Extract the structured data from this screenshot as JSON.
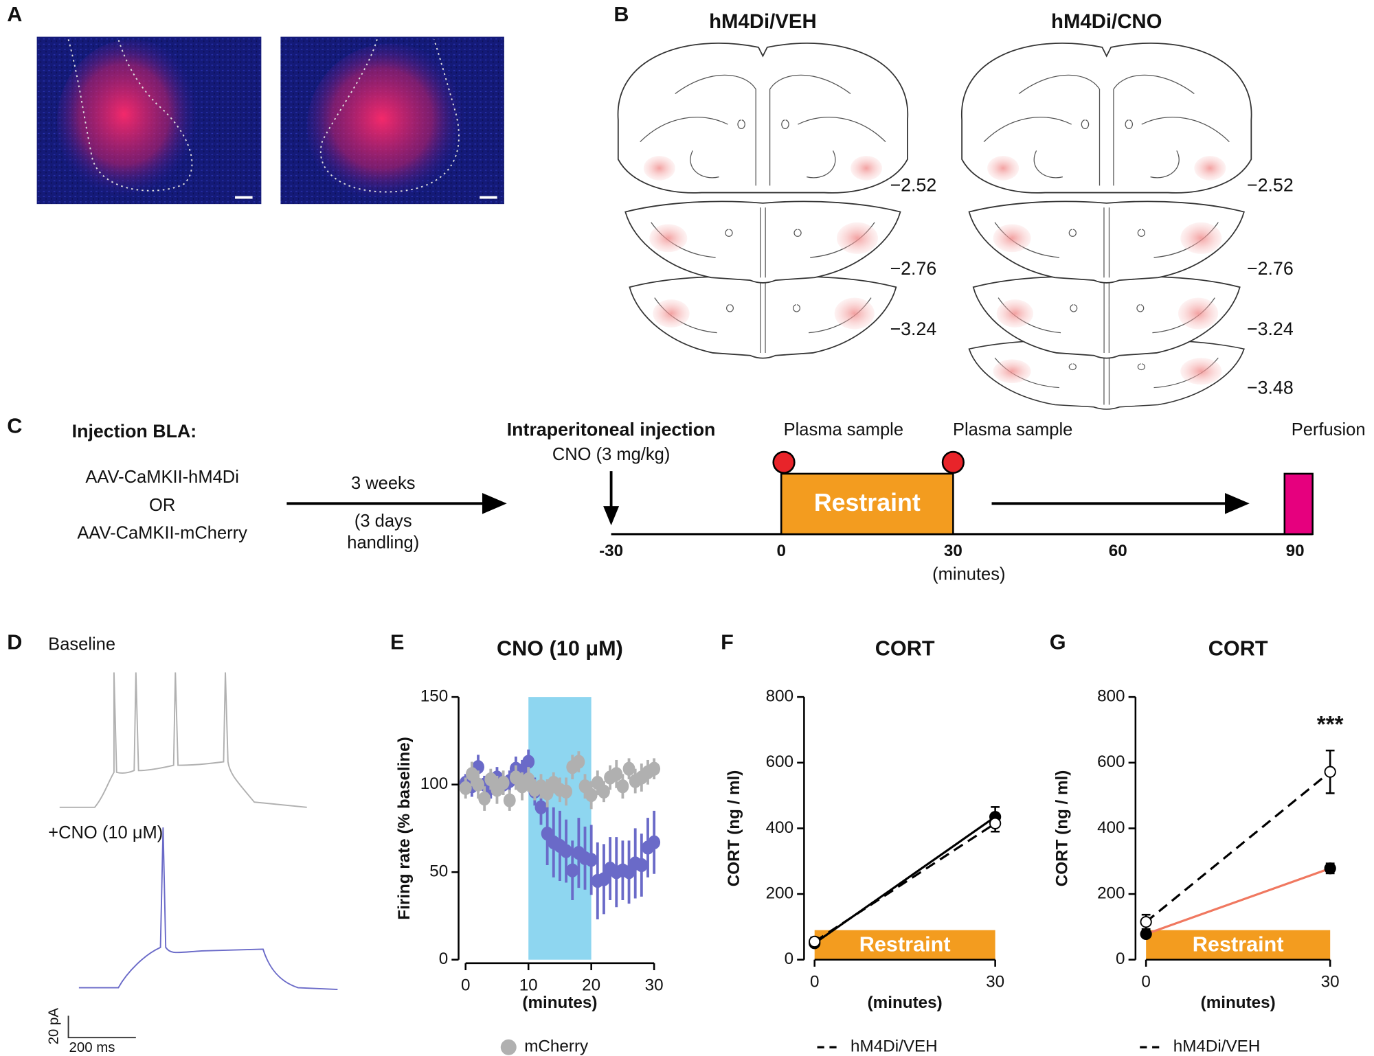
{
  "panel_labels": [
    "A",
    "B",
    "C",
    "D",
    "E",
    "F",
    "G"
  ],
  "panel_b": {
    "titles": [
      "hM4Di/VEH",
      "hM4Di/CNO"
    ],
    "levels_left": [
      "−2.52",
      "−2.76",
      "−3.24"
    ],
    "levels_right": [
      "−2.52",
      "−2.76",
      "−3.24",
      "−3.48"
    ]
  },
  "panel_c": {
    "injection_title": "Injection BLA:",
    "vectors": [
      "AAV-CaMKII-hM4Di",
      "OR",
      "AAV-CaMKII-mCherry"
    ],
    "interval": [
      "3 weeks",
      "(3 days",
      "handling)"
    ],
    "ip_title": "Intraperitoneal injection",
    "ip_dose": "CNO (3 mg/kg)",
    "plasma": [
      "Plasma sample",
      "Plasma sample"
    ],
    "perfusion": "Perfusion",
    "restraint": "Restraint",
    "timeline_ticks": [
      -30,
      0,
      30,
      60,
      90
    ],
    "unit": "(minutes)"
  },
  "panel_d": {
    "baseline": "Baseline",
    "cno": "+CNO (10 μM)",
    "scale_y": "20 pA",
    "scale_x": "200 ms"
  },
  "chart_data": [
    {
      "type": "scatter",
      "title": "CNO (10 μM)",
      "ylabel": "Firing rate (% baseline)",
      "xlabel": "(minutes)",
      "xlim": [
        0,
        30
      ],
      "xticks": [
        0,
        10,
        20,
        30
      ],
      "ylim": [
        0,
        150
      ],
      "yticks": [
        0,
        50,
        100,
        150
      ],
      "lines": false,
      "shade": {
        "x": [
          10,
          20
        ],
        "color": "#8ed6f0"
      },
      "x": [
        0,
        1,
        2,
        3,
        4,
        5,
        6,
        7,
        8,
        9,
        10,
        11,
        12,
        13,
        14,
        15,
        16,
        17,
        18,
        19,
        20,
        21,
        22,
        23,
        24,
        25,
        26,
        27,
        28,
        29,
        30
      ],
      "series": [
        {
          "name": "mCherry",
          "color": "#b0b0b0",
          "values": [
            98,
            106,
            100,
            92,
            103,
            97,
            101,
            91,
            104,
            99,
            103,
            97,
            99,
            95,
            101,
            97,
            96,
            110,
            113,
            99,
            94,
            101,
            96,
            104,
            106,
            99,
            109,
            102,
            104,
            107,
            109
          ],
          "errors": [
            6,
            7,
            8,
            7,
            6,
            8,
            7,
            6,
            7,
            8,
            7,
            6,
            7,
            8,
            6,
            7,
            8,
            7,
            6,
            7,
            8,
            7,
            6,
            7,
            8,
            7,
            6,
            7,
            8,
            7,
            6
          ]
        },
        {
          "color": "#6a6ac8",
          "values": [
            101,
            99,
            110,
            100,
            98,
            104,
            100,
            102,
            109,
            108,
            113,
            96,
            87,
            72,
            67,
            65,
            62,
            51,
            61,
            58,
            57,
            45,
            46,
            52,
            50,
            51,
            50,
            55,
            54,
            64,
            67
          ],
          "errors": [
            5,
            6,
            7,
            5,
            6,
            6,
            5,
            6,
            7,
            6,
            7,
            8,
            10,
            18,
            20,
            20,
            18,
            17,
            20,
            18,
            20,
            22,
            20,
            18,
            20,
            17,
            18,
            20,
            18,
            17,
            18
          ]
        }
      ]
    },
    {
      "type": "line",
      "title": "CORT",
      "ylabel": "CORT (ng / ml)",
      "xlabel": "(minutes)",
      "xlim": [
        0,
        30
      ],
      "xticks": [
        0,
        30
      ],
      "ylim": [
        0,
        800
      ],
      "yticks": [
        0,
        200,
        400,
        600,
        800
      ],
      "lines": true,
      "band": {
        "label": "Restraint",
        "x": [
          0,
          30
        ],
        "y": [
          0,
          90
        ],
        "color": "#f39c1f"
      },
      "x": [
        0,
        30
      ],
      "series": [
        {
          "name": "hM4Di/VEH",
          "color": "#000000",
          "marker_fill": "#ffffff",
          "dashed": true,
          "values": [
            55,
            415
          ],
          "errors": [
            12,
            25
          ]
        },
        {
          "color": "#000000",
          "marker_fill": "#000000",
          "dashed": false,
          "values": [
            50,
            435
          ],
          "errors": [
            8,
            30
          ]
        }
      ]
    },
    {
      "type": "line",
      "title": "CORT",
      "ylabel": "CORT (ng / ml)",
      "xlabel": "(minutes)",
      "annotation": "***",
      "xlim": [
        0,
        30
      ],
      "xticks": [
        0,
        30
      ],
      "ylim": [
        0,
        800
      ],
      "yticks": [
        0,
        200,
        400,
        600,
        800
      ],
      "lines": true,
      "band": {
        "label": "Restraint",
        "x": [
          0,
          30
        ],
        "y": [
          0,
          90
        ],
        "color": "#f39c1f"
      },
      "x": [
        0,
        30
      ],
      "series": [
        {
          "name": "hM4Di/VEH",
          "color": "#000000",
          "marker_fill": "#ffffff",
          "dashed": true,
          "values": [
            115,
            572
          ],
          "errors": [
            22,
            65
          ]
        },
        {
          "color": "#f07860",
          "marker_fill": "#000000",
          "dashed": false,
          "values": [
            78,
            278
          ],
          "errors": [
            6,
            15
          ]
        }
      ]
    }
  ]
}
